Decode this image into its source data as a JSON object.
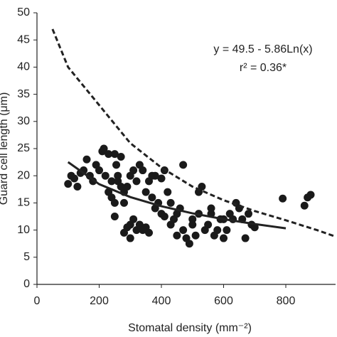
{
  "chart_data": {
    "type": "scatter",
    "x_label": "Stomatal density (mm⁻²)",
    "y_label": "Guard cell length (μm)",
    "annotations": [
      "y = 49.5 - 5.86Ln(x)",
      "r² = 0.36*"
    ],
    "xlim": [
      0,
      960
    ],
    "ylim": [
      0,
      50
    ],
    "xticks": [
      0,
      200,
      400,
      600,
      800
    ],
    "yticks": [
      0,
      5,
      10,
      15,
      20,
      25,
      30,
      35,
      40,
      45,
      50
    ],
    "color": "#1a1a1a",
    "x": [
      100,
      110,
      120,
      130,
      140,
      150,
      160,
      170,
      180,
      190,
      200,
      210,
      215,
      220,
      230,
      240,
      250,
      255,
      260,
      270,
      280,
      230,
      240,
      250,
      250,
      260,
      270,
      280,
      290,
      300,
      310,
      320,
      330,
      340,
      350,
      360,
      370,
      380,
      390,
      400,
      410,
      280,
      290,
      300,
      300,
      310,
      320,
      330,
      340,
      350,
      360,
      370,
      380,
      400,
      410,
      420,
      430,
      440,
      450,
      460,
      470,
      470,
      480,
      490,
      500,
      510,
      520,
      530,
      540,
      550,
      560,
      570,
      580,
      590,
      600,
      610,
      620,
      630,
      640,
      650,
      660,
      670,
      680,
      690,
      700,
      790,
      860,
      870,
      880,
      430,
      450,
      520,
      560,
      600,
      500
    ],
    "values": [
      18.5,
      20,
      19.5,
      18,
      20.5,
      21,
      23,
      20,
      19,
      22,
      21,
      24.5,
      25,
      20,
      24,
      19,
      24,
      22,
      20,
      23.5,
      17,
      17,
      16,
      15,
      12.5,
      19,
      18,
      15,
      18,
      20,
      21,
      19,
      22,
      21,
      17,
      19,
      20,
      20,
      15,
      19.5,
      21,
      9.5,
      10.5,
      11,
      8.5,
      12,
      10,
      11,
      10,
      10.5,
      9.5,
      16,
      14,
      13,
      12.5,
      17,
      15,
      12,
      13,
      14,
      22,
      10,
      8.5,
      7.5,
      12,
      9,
      13,
      18,
      10,
      11,
      13,
      9,
      10,
      12,
      8.5,
      10,
      13,
      12,
      15,
      14,
      12,
      8.5,
      13,
      11,
      10.5,
      15.8,
      14.5,
      16,
      16.5,
      11,
      9,
      17,
      14,
      12,
      11
    ],
    "lines": [
      {
        "style": "solid",
        "x": [
          100,
          200,
          300,
          400,
          500,
          600,
          700,
          800
        ],
        "values": [
          22.51,
          18.45,
          16.08,
          14.39,
          13.08,
          12.01,
          11.11,
          10.33
        ]
      },
      {
        "style": "dashed",
        "x": [
          50,
          100,
          200,
          300,
          400,
          500,
          600,
          700,
          800,
          900,
          960
        ],
        "values": [
          47,
          40,
          33,
          26,
          21.5,
          18,
          15.5,
          13.5,
          11.8,
          10,
          8.8
        ]
      }
    ]
  }
}
